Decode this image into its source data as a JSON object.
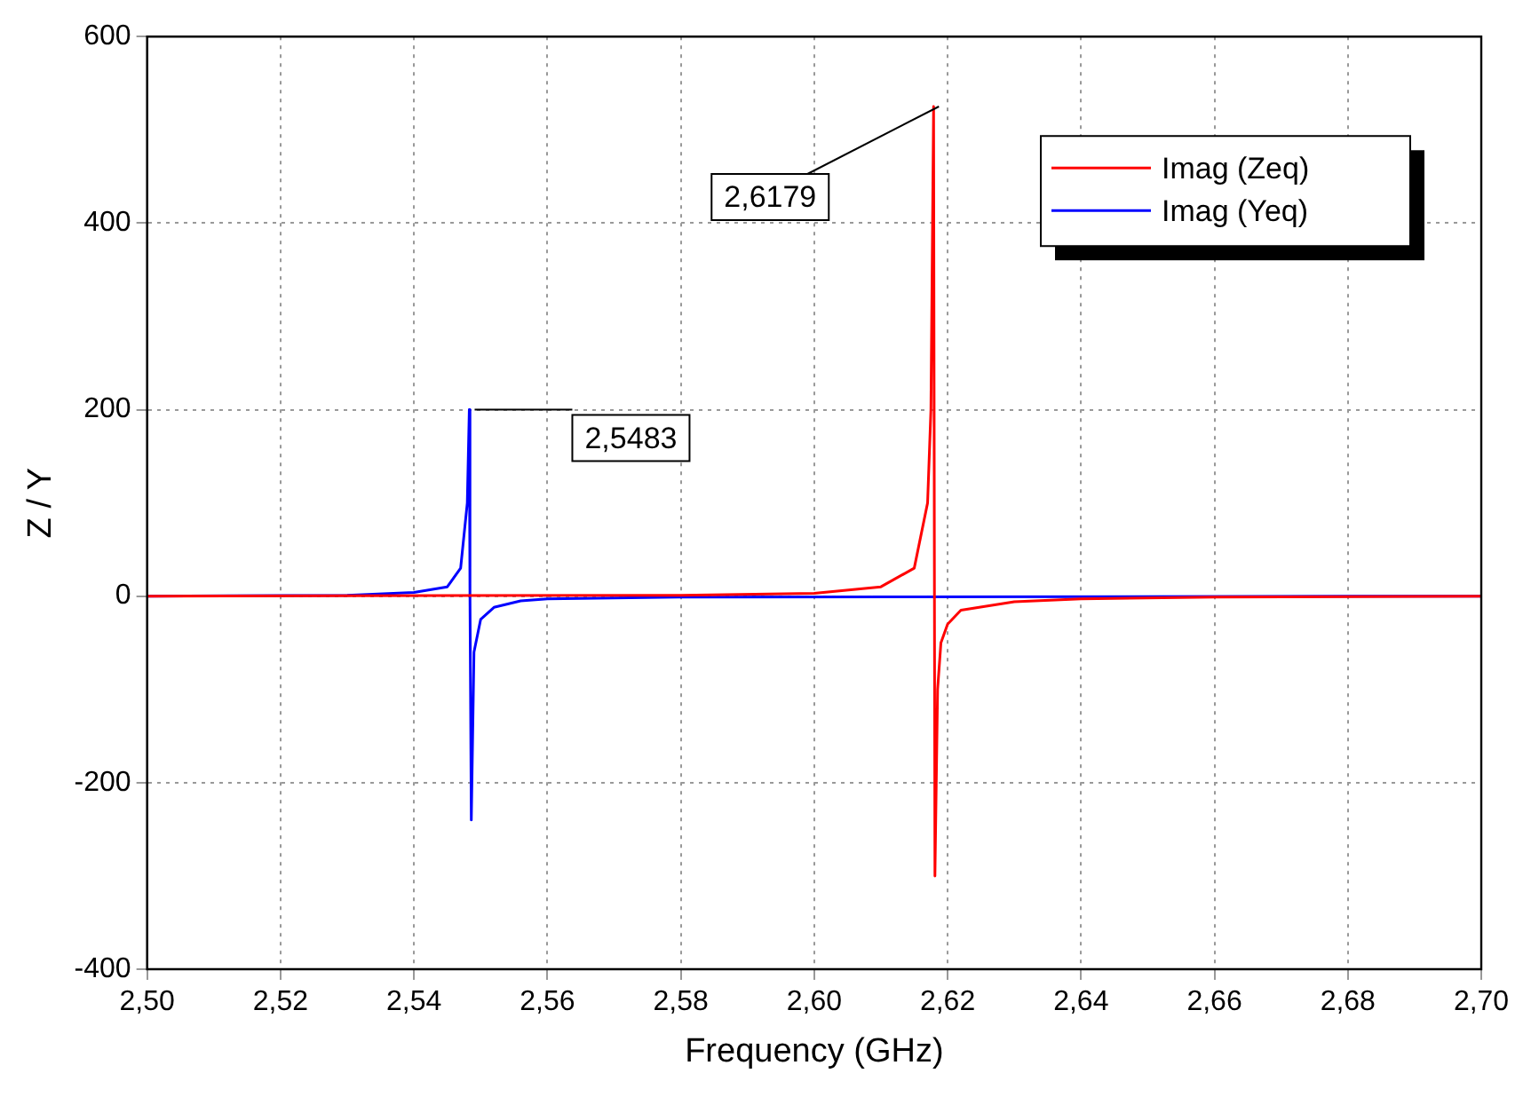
{
  "chart_data": {
    "type": "line",
    "xlabel": "Frequency (GHz)",
    "ylabel": "Z / Y",
    "xlim": [
      2.5,
      2.7
    ],
    "xticks": [
      {
        "value": 2.5,
        "label": "2,50"
      },
      {
        "value": 2.52,
        "label": "2,52"
      },
      {
        "value": 2.54,
        "label": "2,54"
      },
      {
        "value": 2.56,
        "label": "2,56"
      },
      {
        "value": 2.58,
        "label": "2,58"
      },
      {
        "value": 2.6,
        "label": "2,60"
      },
      {
        "value": 2.62,
        "label": "2,62"
      },
      {
        "value": 2.64,
        "label": "2,64"
      },
      {
        "value": 2.66,
        "label": "2,66"
      },
      {
        "value": 2.68,
        "label": "2,68"
      },
      {
        "value": 2.7,
        "label": "2,70"
      }
    ],
    "ylim": [
      -400,
      600
    ],
    "yticks": [
      -400,
      -200,
      0,
      200,
      400,
      600
    ],
    "grid": true,
    "legend": "top right",
    "marker": "none",
    "line_style": "solid",
    "series": [
      {
        "name": "Imag (Zeq)",
        "color": "#ff0000",
        "x": [
          2.5,
          2.58,
          2.6,
          2.61,
          2.615,
          2.617,
          2.6175,
          2.6179,
          2.6181,
          2.6185,
          2.619,
          2.62,
          2.622,
          2.63,
          2.64,
          2.66,
          2.7
        ],
        "values": [
          0,
          1,
          3,
          10,
          30,
          100,
          200,
          525,
          -300,
          -100,
          -50,
          -30,
          -15,
          -6,
          -3,
          -1,
          0
        ]
      },
      {
        "name": "Imag (Yeq)",
        "color": "#0000ff",
        "x": [
          2.5,
          2.53,
          2.54,
          2.545,
          2.547,
          2.548,
          2.5483,
          2.5484,
          2.5486,
          2.549,
          2.55,
          2.552,
          2.556,
          2.56,
          2.58,
          2.7
        ],
        "values": [
          0,
          1,
          4,
          10,
          30,
          100,
          200,
          0,
          -240,
          -60,
          -25,
          -12,
          -5,
          -3,
          -1,
          0
        ]
      }
    ],
    "annotations": [
      {
        "text": "2,5483",
        "x": 2.5483,
        "y": 200
      },
      {
        "text": "2,6179",
        "x": 2.6179,
        "y": 525
      }
    ]
  }
}
